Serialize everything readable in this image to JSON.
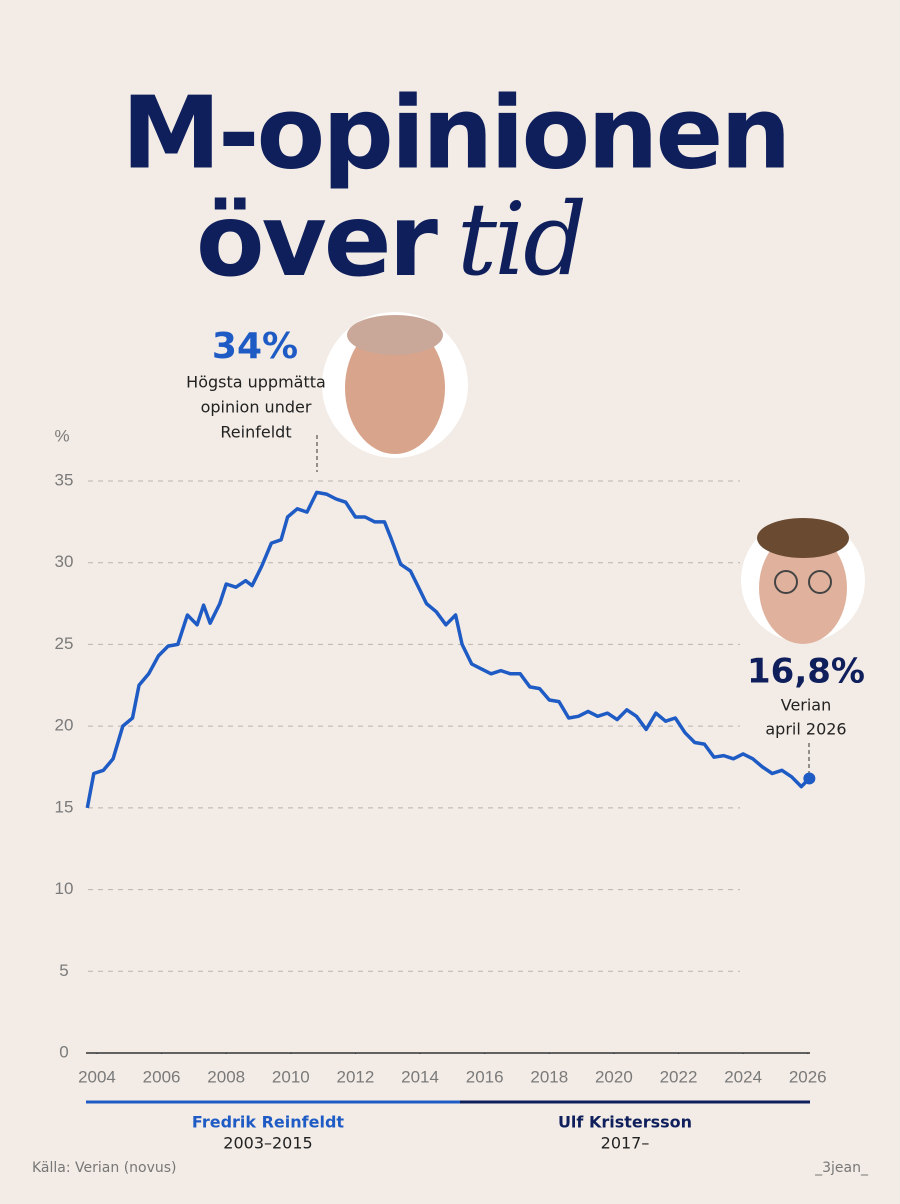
{
  "chart_data": {
    "type": "line",
    "title": {
      "line1": "M-opinionen",
      "line2": "över",
      "line2_italic": "tid"
    },
    "y_label": "%",
    "x": [
      2003.7,
      2003.9,
      2004.2,
      2004.5,
      2004.8,
      2005.1,
      2005.3,
      2005.6,
      2005.9,
      2006.2,
      2006.5,
      2006.8,
      2007.1,
      2007.3,
      2007.5,
      2007.8,
      2008.0,
      2008.3,
      2008.6,
      2008.8,
      2009.1,
      2009.4,
      2009.7,
      2009.9,
      2010.2,
      2010.5,
      2010.8,
      2011.1,
      2011.4,
      2011.7,
      2012.0,
      2012.3,
      2012.6,
      2012.9,
      2013.1,
      2013.4,
      2013.7,
      2014.0,
      2014.2,
      2014.5,
      2014.8,
      2015.1,
      2015.3,
      2015.6,
      2015.9,
      2016.2,
      2016.5,
      2016.8,
      2017.1,
      2017.4,
      2017.7,
      2018.0,
      2018.3,
      2018.6,
      2018.9,
      2019.2,
      2019.5,
      2019.8,
      2020.1,
      2020.4,
      2020.7,
      2021.0,
      2021.3,
      2021.6,
      2021.9,
      2022.2,
      2022.5,
      2022.8,
      2023.1,
      2023.4,
      2023.7,
      2024.0,
      2024.3,
      2024.6,
      2024.9,
      2025.2,
      2025.5,
      2025.8,
      2026.05
    ],
    "series": [
      {
        "name": "M",
        "color": "#1f5bc4",
        "values": [
          15.0,
          17.1,
          17.3,
          18.0,
          20.0,
          20.5,
          22.5,
          23.2,
          24.3,
          24.9,
          25.0,
          26.8,
          26.2,
          27.4,
          26.3,
          27.5,
          28.7,
          28.5,
          28.9,
          28.6,
          29.8,
          31.2,
          31.4,
          32.8,
          33.3,
          33.1,
          34.3,
          34.2,
          33.9,
          33.7,
          32.8,
          32.8,
          32.5,
          32.5,
          31.5,
          29.9,
          29.5,
          28.3,
          27.5,
          27.0,
          26.2,
          26.8,
          25.0,
          23.8,
          23.5,
          23.2,
          23.4,
          23.2,
          23.2,
          22.4,
          22.3,
          21.6,
          21.5,
          20.5,
          20.6,
          20.9,
          20.6,
          20.8,
          20.4,
          21.0,
          20.6,
          19.8,
          20.8,
          20.3,
          20.5,
          19.6,
          19.0,
          18.9,
          18.1,
          18.2,
          18.0,
          18.3,
          18.0,
          17.5,
          17.1,
          17.3,
          16.9,
          16.3,
          16.8
        ]
      }
    ],
    "xlim": [
      2003.66,
      2026.07
    ],
    "xticks": [
      2004,
      2006,
      2008,
      2010,
      2012,
      2014,
      2016,
      2018,
      2020,
      2022,
      2024,
      2026
    ],
    "ylim": [
      0,
      35
    ],
    "yticks": [
      0,
      5,
      10,
      15,
      20,
      25,
      30,
      35
    ],
    "grid": true,
    "annotations": {
      "peak_value": "34%",
      "peak_text": [
        "Högsta uppmätta",
        "opinion under",
        "Reinfeldt"
      ],
      "end_value": "16,8%",
      "end_text": [
        "Verian",
        "april 2026"
      ]
    },
    "periods": [
      {
        "name": "Fredrik Reinfeldt",
        "years": "2003–2015",
        "color": "#1f5bc4"
      },
      {
        "name": "Ulf Kristersson",
        "years": "2017–",
        "color": "#0f1f5c"
      }
    ],
    "source": "Källa: Verian (novus)",
    "credit": "_3jean_"
  }
}
